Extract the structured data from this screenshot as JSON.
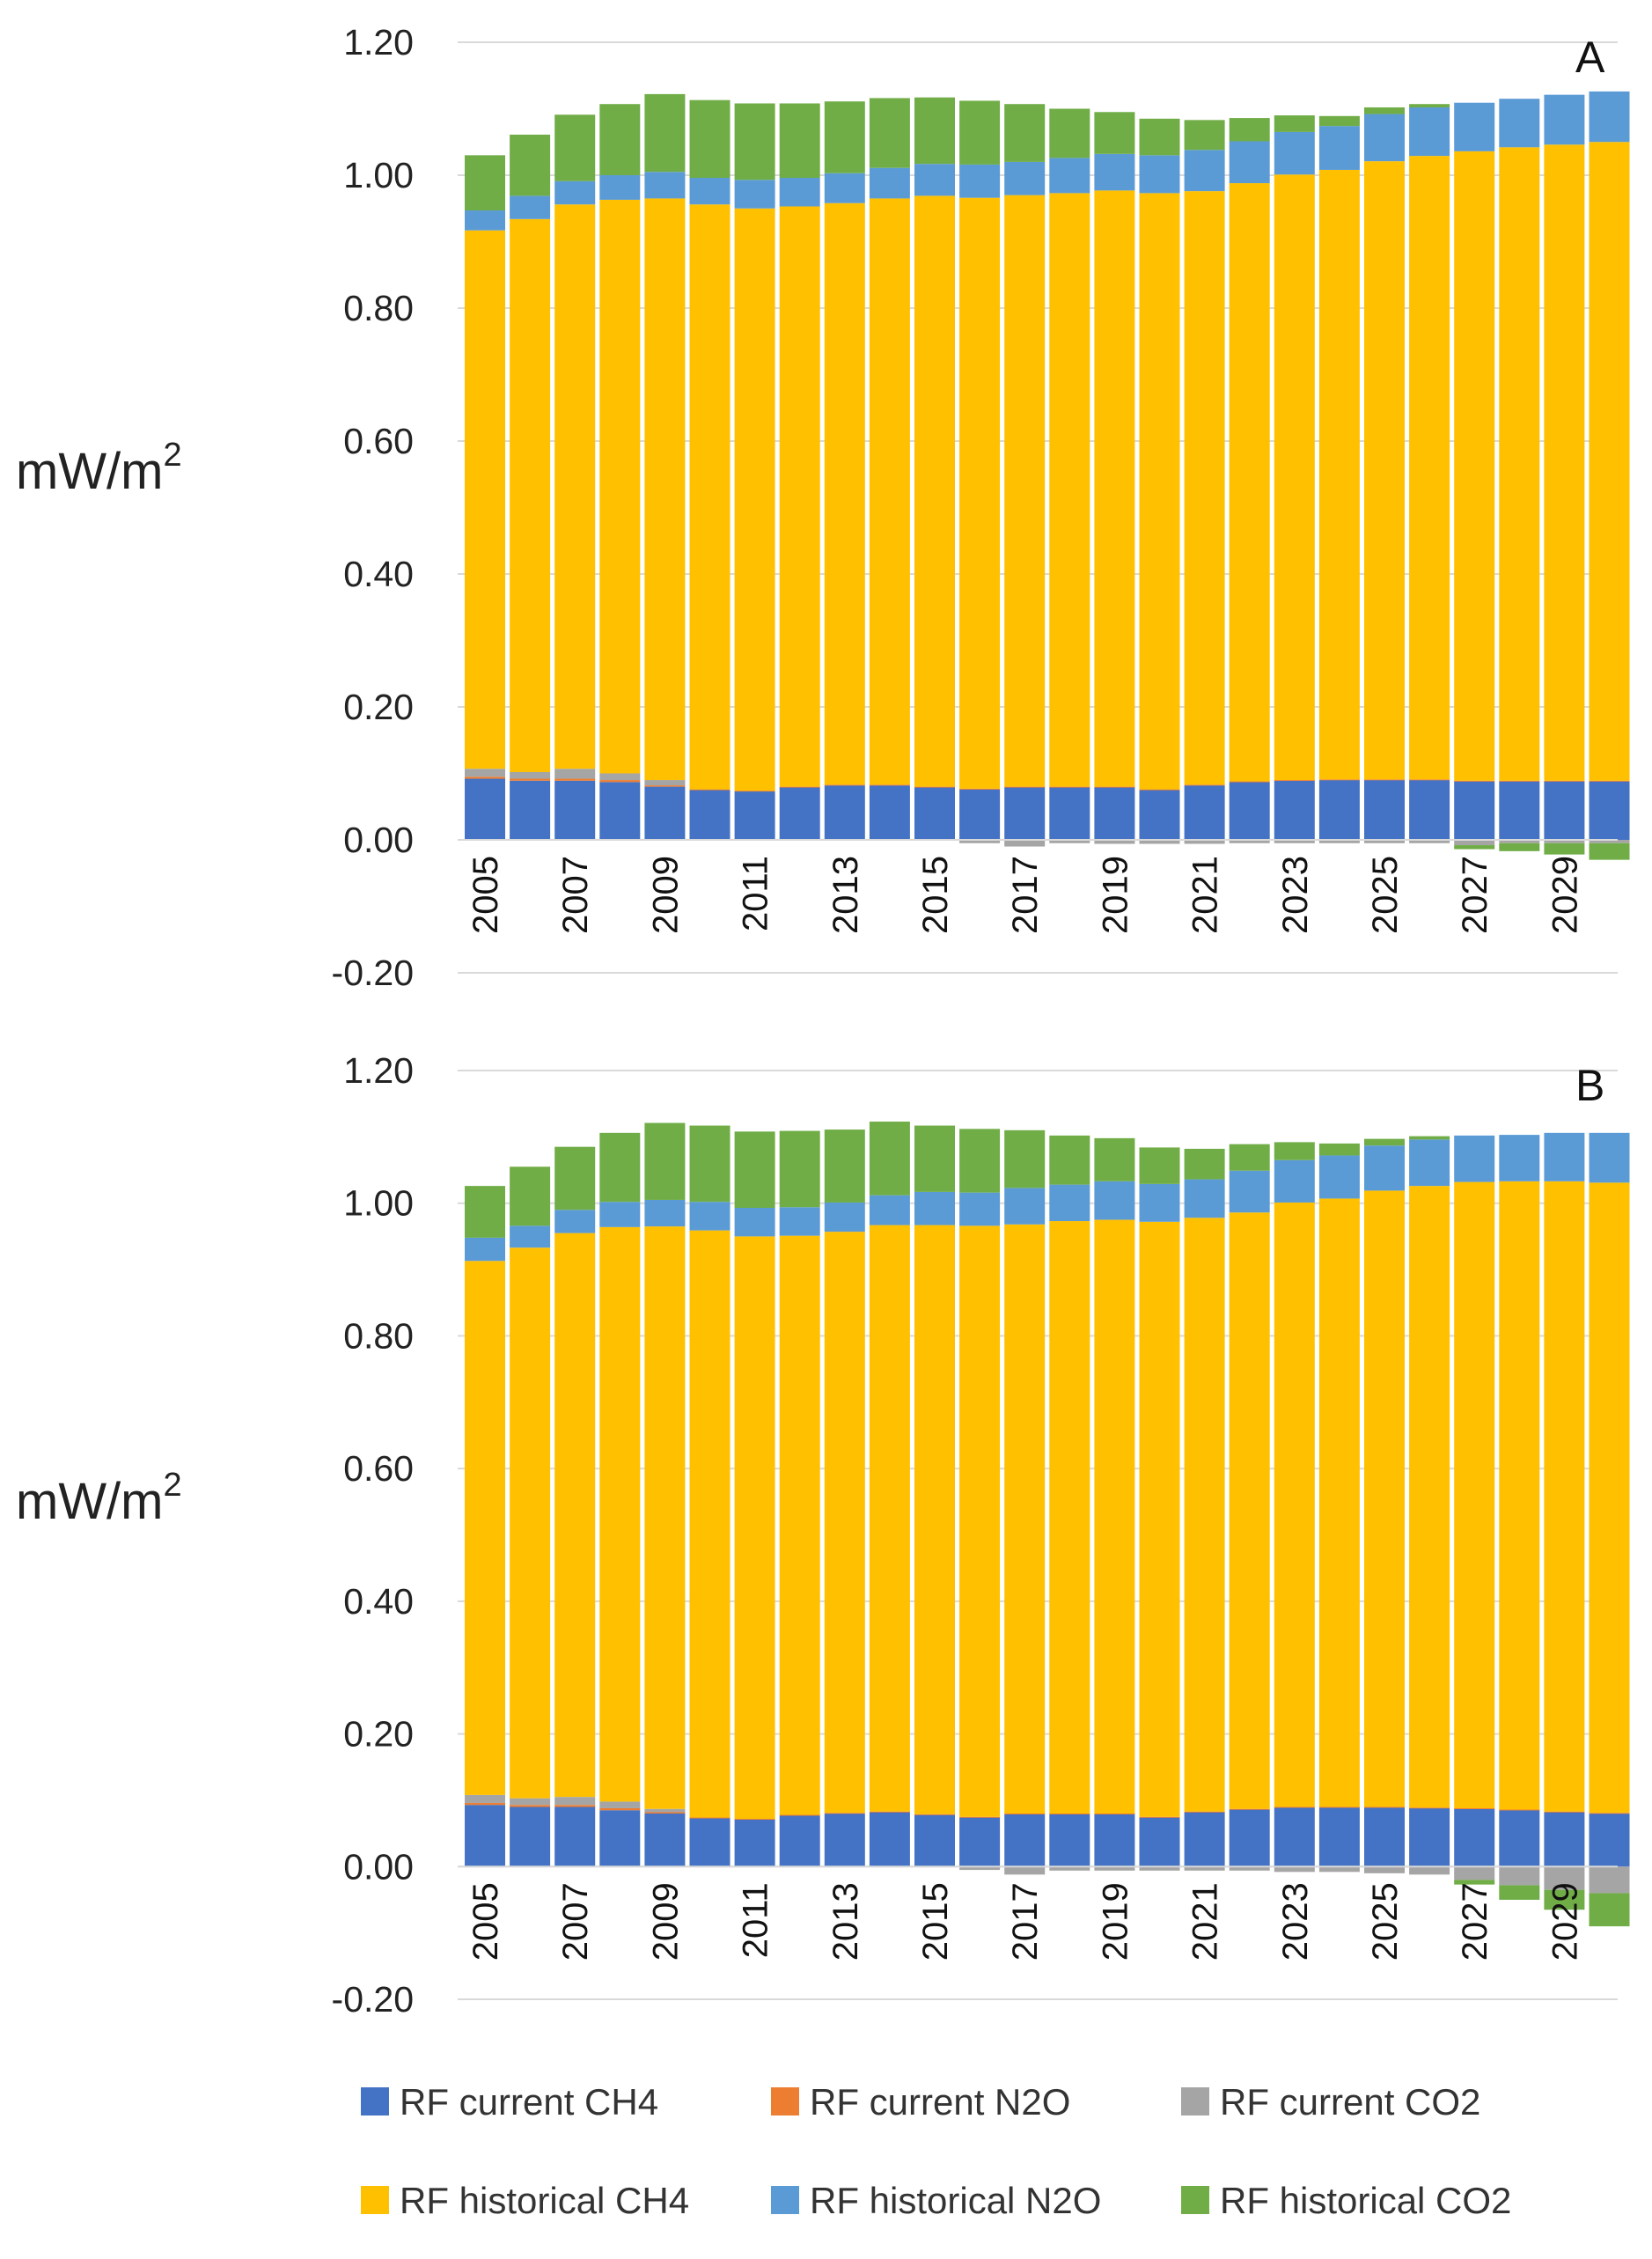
{
  "chart_data": [
    {
      "type": "bar",
      "stacked": true,
      "panel_label": "A",
      "ylabel_main": "mW/m",
      "ylabel_sup": "2",
      "ylim": [
        -0.2,
        1.2
      ],
      "yticks": [
        "1.20",
        "1.00",
        "0.80",
        "0.60",
        "0.40",
        "0.20",
        "0.00",
        "-0.20"
      ],
      "ytick_values": [
        1.2,
        1.0,
        0.8,
        0.6,
        0.4,
        0.2,
        0.0,
        -0.2
      ],
      "categories": [
        "2005",
        "2006",
        "2007",
        "2008",
        "2009",
        "2010",
        "2011",
        "2012",
        "2013",
        "2014",
        "2015",
        "2016",
        "2017",
        "2018",
        "2019",
        "2020",
        "2021",
        "2022",
        "2023",
        "2024",
        "2025",
        "2026",
        "2027",
        "2028",
        "2029",
        "2030"
      ],
      "xtick_labels": [
        "2005",
        "",
        "2007",
        "",
        "2009",
        "",
        "2011",
        "",
        "2013",
        "",
        "2015",
        "",
        "2017",
        "",
        "2019",
        "",
        "2021",
        "",
        "2023",
        "",
        "2025",
        "",
        "2027",
        "",
        "2029",
        ""
      ],
      "series": [
        {
          "name": "RF current CH4",
          "color": "#4472C4",
          "values": [
            0.092,
            0.089,
            0.089,
            0.087,
            0.08,
            0.075,
            0.073,
            0.079,
            0.082,
            0.082,
            0.079,
            0.076,
            0.079,
            0.079,
            0.079,
            0.075,
            0.082,
            0.087,
            0.089,
            0.09,
            0.09,
            0.09,
            0.088,
            0.088,
            0.088,
            0.088
          ]
        },
        {
          "name": "RF current N2O",
          "color": "#ED7D31",
          "values": [
            0.003,
            0.003,
            0.003,
            0.003,
            0.002,
            0.001,
            0.001,
            0.001,
            0.001,
            0.001,
            0.001,
            0.001,
            0.001,
            0.001,
            0.001,
            0.001,
            0.001,
            0.001,
            0.001,
            0.001,
            0.001,
            0.001,
            0.001,
            0.001,
            0.001,
            0.001
          ]
        },
        {
          "name": "RF current CO2",
          "color": "#A5A5A5",
          "values": [
            0.012,
            0.01,
            0.015,
            0.01,
            0.008,
            0.0,
            0.0,
            0.0,
            0.0,
            0.0,
            0.0,
            -0.005,
            -0.01,
            -0.005,
            -0.006,
            -0.006,
            -0.006,
            -0.005,
            -0.005,
            -0.005,
            -0.005,
            -0.005,
            -0.008,
            -0.005,
            -0.005,
            -0.005
          ]
        },
        {
          "name": "RF historical CH4",
          "color": "#FFC000",
          "values": [
            0.81,
            0.832,
            0.849,
            0.863,
            0.875,
            0.88,
            0.876,
            0.873,
            0.875,
            0.882,
            0.889,
            0.889,
            0.89,
            0.893,
            0.897,
            0.897,
            0.893,
            0.9,
            0.911,
            0.917,
            0.93,
            0.938,
            0.947,
            0.953,
            0.957,
            0.961
          ]
        },
        {
          "name": "RF historical N2O",
          "color": "#5B9BD5",
          "values": [
            0.03,
            0.035,
            0.035,
            0.037,
            0.04,
            0.04,
            0.043,
            0.043,
            0.045,
            0.046,
            0.048,
            0.05,
            0.05,
            0.053,
            0.055,
            0.057,
            0.062,
            0.063,
            0.064,
            0.066,
            0.071,
            0.073,
            0.073,
            0.073,
            0.075,
            0.076
          ]
        },
        {
          "name": "RF historical CO2",
          "color": "#70AD47",
          "values": [
            0.083,
            0.092,
            0.1,
            0.107,
            0.117,
            0.117,
            0.115,
            0.112,
            0.108,
            0.105,
            0.1,
            0.096,
            0.087,
            0.074,
            0.063,
            0.055,
            0.045,
            0.035,
            0.025,
            0.015,
            0.01,
            0.005,
            -0.006,
            -0.012,
            -0.017,
            -0.025
          ]
        }
      ]
    },
    {
      "type": "bar",
      "stacked": true,
      "panel_label": "B",
      "ylabel_main": "mW/m",
      "ylabel_sup": "2",
      "ylim": [
        -0.2,
        1.2
      ],
      "yticks": [
        "1.20",
        "1.00",
        "0.80",
        "0.60",
        "0.40",
        "0.20",
        "0.00",
        "-0.20"
      ],
      "ytick_values": [
        1.2,
        1.0,
        0.8,
        0.6,
        0.4,
        0.2,
        0.0,
        -0.2
      ],
      "categories": [
        "2005",
        "2006",
        "2007",
        "2008",
        "2009",
        "2010",
        "2011",
        "2012",
        "2013",
        "2014",
        "2015",
        "2016",
        "2017",
        "2018",
        "2019",
        "2020",
        "2021",
        "2022",
        "2023",
        "2024",
        "2025",
        "2026",
        "2027",
        "2028",
        "2029",
        "2030"
      ],
      "xtick_labels": [
        "2005",
        "",
        "2007",
        "",
        "2009",
        "",
        "2011",
        "",
        "2013",
        "",
        "2015",
        "",
        "2017",
        "",
        "2019",
        "",
        "2021",
        "",
        "2023",
        "",
        "2025",
        "",
        "2027",
        "",
        "2029",
        ""
      ],
      "series": [
        {
          "name": "RF current CH4",
          "color": "#4472C4",
          "values": [
            0.093,
            0.09,
            0.09,
            0.085,
            0.08,
            0.073,
            0.071,
            0.077,
            0.08,
            0.082,
            0.078,
            0.074,
            0.079,
            0.079,
            0.079,
            0.074,
            0.082,
            0.086,
            0.089,
            0.089,
            0.089,
            0.088,
            0.087,
            0.085,
            0.082,
            0.08
          ]
        },
        {
          "name": "RF current N2O",
          "color": "#ED7D31",
          "values": [
            0.003,
            0.003,
            0.003,
            0.003,
            0.002,
            0.001,
            0.001,
            0.001,
            0.001,
            0.001,
            0.001,
            0.001,
            0.001,
            0.001,
            0.001,
            0.001,
            0.001,
            0.001,
            0.001,
            0.001,
            0.001,
            0.001,
            0.001,
            0.001,
            0.001,
            0.001
          ]
        },
        {
          "name": "RF current CO2",
          "color": "#A5A5A5",
          "values": [
            0.012,
            0.01,
            0.012,
            0.01,
            0.005,
            0.0,
            0.0,
            0.0,
            0.0,
            0.0,
            0.0,
            -0.005,
            -0.012,
            -0.006,
            -0.006,
            -0.006,
            -0.006,
            -0.006,
            -0.008,
            -0.008,
            -0.01,
            -0.012,
            -0.02,
            -0.028,
            -0.035,
            -0.04
          ]
        },
        {
          "name": "RF historical CH4",
          "color": "#FFC000",
          "values": [
            0.805,
            0.83,
            0.85,
            0.866,
            0.878,
            0.885,
            0.878,
            0.873,
            0.876,
            0.884,
            0.888,
            0.891,
            0.888,
            0.893,
            0.895,
            0.897,
            0.895,
            0.899,
            0.911,
            0.917,
            0.929,
            0.937,
            0.944,
            0.947,
            0.95,
            0.95
          ]
        },
        {
          "name": "RF historical N2O",
          "color": "#5B9BD5",
          "values": [
            0.035,
            0.033,
            0.035,
            0.038,
            0.04,
            0.043,
            0.043,
            0.043,
            0.044,
            0.045,
            0.05,
            0.05,
            0.055,
            0.055,
            0.058,
            0.057,
            0.058,
            0.063,
            0.064,
            0.065,
            0.068,
            0.07,
            0.07,
            0.07,
            0.073,
            0.075
          ]
        },
        {
          "name": "RF historical CO2",
          "color": "#70AD47",
          "values": [
            0.078,
            0.089,
            0.095,
            0.104,
            0.116,
            0.115,
            0.115,
            0.115,
            0.11,
            0.111,
            0.1,
            0.096,
            0.087,
            0.074,
            0.065,
            0.055,
            0.046,
            0.04,
            0.027,
            0.018,
            0.01,
            0.005,
            -0.007,
            -0.022,
            -0.03,
            -0.05
          ]
        }
      ]
    }
  ],
  "legend": {
    "items": [
      {
        "label": "RF current CH4",
        "color": "#4472C4"
      },
      {
        "label": "RF current N2O",
        "color": "#ED7D31"
      },
      {
        "label": "RF current CO2",
        "color": "#A5A5A5"
      },
      {
        "label": "RF historical CH4",
        "color": "#FFC000"
      },
      {
        "label": "RF historical N2O",
        "color": "#5B9BD5"
      },
      {
        "label": "RF historical CO2",
        "color": "#70AD47"
      }
    ]
  }
}
